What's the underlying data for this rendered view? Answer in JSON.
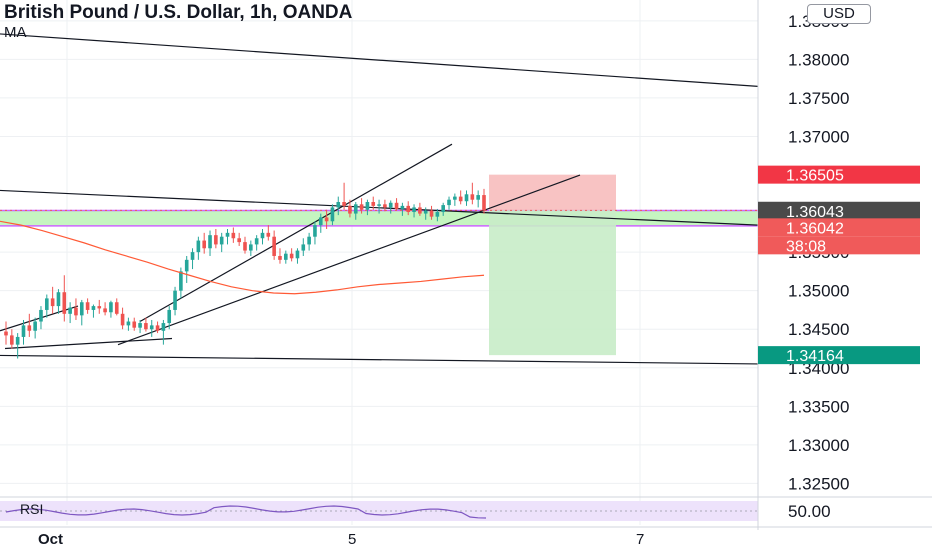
{
  "header": {
    "title": "British Pound / U.S. Dollar, 1h, OANDA",
    "indicator": "MA",
    "currency": "USD"
  },
  "rsi": {
    "label": "RSI",
    "value": "50.00"
  },
  "colors": {
    "up": "#26a69a",
    "down": "#ef5350",
    "ma": "#ff5a36",
    "sl_zone": "#f7b9b9",
    "tp_zone": "#c8ecc8",
    "band": "#c5f5c0",
    "band_edge": "#cc66ff",
    "rsi_line": "#7e57c2",
    "rsi_bg": "#ede2fb"
  },
  "chart_data": {
    "type": "candlestick",
    "title": "British Pound / U.S. Dollar, 1h, OANDA",
    "y_ticks": [
      "1.38500",
      "1.38000",
      "1.37500",
      "1.37000",
      "1.35500",
      "1.35000",
      "1.34500",
      "1.34000",
      "1.33500",
      "1.33000",
      "1.32500"
    ],
    "ylim": [
      1.3235,
      1.3877
    ],
    "x_ticks": [
      "Oct",
      "5",
      "7"
    ],
    "price_labels": [
      {
        "value": "1.36505",
        "color": "#f23645"
      },
      {
        "value": "1.36043",
        "color": "#4a4a4a"
      },
      {
        "value": "1.36042",
        "color": "#f05a5a"
      },
      {
        "value": "38:08",
        "color": "#f05a5a"
      },
      {
        "value": "1.34164",
        "color": "#089981"
      }
    ],
    "candles": [
      [
        1.3447,
        1.346,
        1.343,
        1.3442
      ],
      [
        1.3442,
        1.345,
        1.3425,
        1.343
      ],
      [
        1.343,
        1.3445,
        1.3412,
        1.344
      ],
      [
        1.344,
        1.3462,
        1.343,
        1.3455
      ],
      [
        1.3455,
        1.347,
        1.344,
        1.3448
      ],
      [
        1.3448,
        1.3465,
        1.3438,
        1.346
      ],
      [
        1.346,
        1.348,
        1.345,
        1.3475
      ],
      [
        1.3475,
        1.3495,
        1.3465,
        1.349
      ],
      [
        1.349,
        1.3505,
        1.347,
        1.348
      ],
      [
        1.348,
        1.3502,
        1.347,
        1.3498
      ],
      [
        1.3498,
        1.352,
        1.346,
        1.347
      ],
      [
        1.347,
        1.3485,
        1.3458,
        1.3478
      ],
      [
        1.3478,
        1.349,
        1.3462,
        1.3468
      ],
      [
        1.3468,
        1.3488,
        1.3455,
        1.3485
      ],
      [
        1.3485,
        1.349,
        1.347,
        1.3475
      ],
      [
        1.3475,
        1.3482,
        1.3465,
        1.348
      ],
      [
        1.348,
        1.3488,
        1.347,
        1.3477
      ],
      [
        1.3477,
        1.3485,
        1.3468,
        1.3472
      ],
      [
        1.3472,
        1.3487,
        1.3465,
        1.3485
      ],
      [
        1.3485,
        1.349,
        1.3468,
        1.347
      ],
      [
        1.347,
        1.3478,
        1.345,
        1.3455
      ],
      [
        1.3455,
        1.3465,
        1.3448,
        1.346
      ],
      [
        1.346,
        1.3465,
        1.3448,
        1.3452
      ],
      [
        1.3452,
        1.3462,
        1.3445,
        1.3458
      ],
      [
        1.3458,
        1.3465,
        1.3447,
        1.345
      ],
      [
        1.345,
        1.3462,
        1.344,
        1.3455
      ],
      [
        1.3455,
        1.346,
        1.3445,
        1.3448
      ],
      [
        1.3448,
        1.3462,
        1.343,
        1.3458
      ],
      [
        1.3458,
        1.348,
        1.345,
        1.3475
      ],
      [
        1.3475,
        1.3505,
        1.3468,
        1.35
      ],
      [
        1.35,
        1.353,
        1.349,
        1.3525
      ],
      [
        1.3525,
        1.3545,
        1.351,
        1.354
      ],
      [
        1.354,
        1.3555,
        1.3528,
        1.355
      ],
      [
        1.355,
        1.357,
        1.354,
        1.3565
      ],
      [
        1.3565,
        1.3575,
        1.3548,
        1.3555
      ],
      [
        1.3555,
        1.3578,
        1.3545,
        1.3572
      ],
      [
        1.3572,
        1.358,
        1.3555,
        1.356
      ],
      [
        1.356,
        1.3575,
        1.355,
        1.357
      ],
      [
        1.357,
        1.358,
        1.356,
        1.3575
      ],
      [
        1.3575,
        1.3582,
        1.3562,
        1.3568
      ],
      [
        1.3568,
        1.3575,
        1.3558,
        1.3563
      ],
      [
        1.3563,
        1.357,
        1.3548,
        1.3552
      ],
      [
        1.3552,
        1.3565,
        1.3545,
        1.356
      ],
      [
        1.356,
        1.3572,
        1.3552,
        1.3568
      ],
      [
        1.3568,
        1.358,
        1.356,
        1.3575
      ],
      [
        1.3575,
        1.3585,
        1.3565,
        1.357
      ],
      [
        1.357,
        1.3578,
        1.354,
        1.3545
      ],
      [
        1.3545,
        1.3555,
        1.3535,
        1.354
      ],
      [
        1.354,
        1.3552,
        1.3535,
        1.3548
      ],
      [
        1.3548,
        1.3555,
        1.3538,
        1.3542
      ],
      [
        1.3542,
        1.3555,
        1.3535,
        1.3552
      ],
      [
        1.3552,
        1.3568,
        1.3545,
        1.356
      ],
      [
        1.356,
        1.3575,
        1.3552,
        1.357
      ],
      [
        1.357,
        1.359,
        1.356,
        1.3585
      ],
      [
        1.3585,
        1.36,
        1.3575,
        1.3595
      ],
      [
        1.3595,
        1.3605,
        1.358,
        1.359
      ],
      [
        1.359,
        1.3612,
        1.3585,
        1.3608
      ],
      [
        1.3608,
        1.3622,
        1.3598,
        1.3615
      ],
      [
        1.3615,
        1.364,
        1.3605,
        1.361
      ],
      [
        1.361,
        1.3618,
        1.3595,
        1.36
      ],
      [
        1.36,
        1.3615,
        1.3592,
        1.3612
      ],
      [
        1.3612,
        1.362,
        1.36,
        1.3605
      ],
      [
        1.3605,
        1.3618,
        1.3598,
        1.3615
      ],
      [
        1.3615,
        1.3622,
        1.3605,
        1.361
      ],
      [
        1.361,
        1.3618,
        1.36,
        1.3612
      ],
      [
        1.3612,
        1.3618,
        1.3603,
        1.3608
      ],
      [
        1.3608,
        1.3617,
        1.36,
        1.3614
      ],
      [
        1.3614,
        1.362,
        1.3604,
        1.3606
      ],
      [
        1.3606,
        1.3614,
        1.3597,
        1.361
      ],
      [
        1.361,
        1.3616,
        1.3598,
        1.3602
      ],
      [
        1.3602,
        1.3612,
        1.3595,
        1.3608
      ],
      [
        1.3608,
        1.3614,
        1.3597,
        1.36
      ],
      [
        1.36,
        1.3608,
        1.3592,
        1.3604
      ],
      [
        1.3604,
        1.361,
        1.3592,
        1.3596
      ],
      [
        1.3596,
        1.3606,
        1.359,
        1.3602
      ],
      [
        1.3602,
        1.3614,
        1.3597,
        1.3611
      ],
      [
        1.3611,
        1.3622,
        1.3605,
        1.3618
      ],
      [
        1.3618,
        1.3626,
        1.361,
        1.3622
      ],
      [
        1.3622,
        1.363,
        1.3612,
        1.3616
      ],
      [
        1.3616,
        1.363,
        1.361,
        1.3625
      ],
      [
        1.3625,
        1.364,
        1.3612,
        1.3618
      ],
      [
        1.3618,
        1.363,
        1.3608,
        1.3624
      ],
      [
        1.3624,
        1.3632,
        1.36,
        1.3604
      ]
    ],
    "ma": [
      1.359,
      1.3585,
      1.3578,
      1.357,
      1.3562,
      1.3553,
      1.3545,
      1.3537,
      1.3528,
      1.352,
      1.3512,
      1.3505,
      1.35,
      1.3497,
      1.3496,
      1.3498,
      1.3501,
      1.3505,
      1.3508,
      1.351,
      1.3512,
      1.3515,
      1.3518,
      1.352
    ]
  }
}
